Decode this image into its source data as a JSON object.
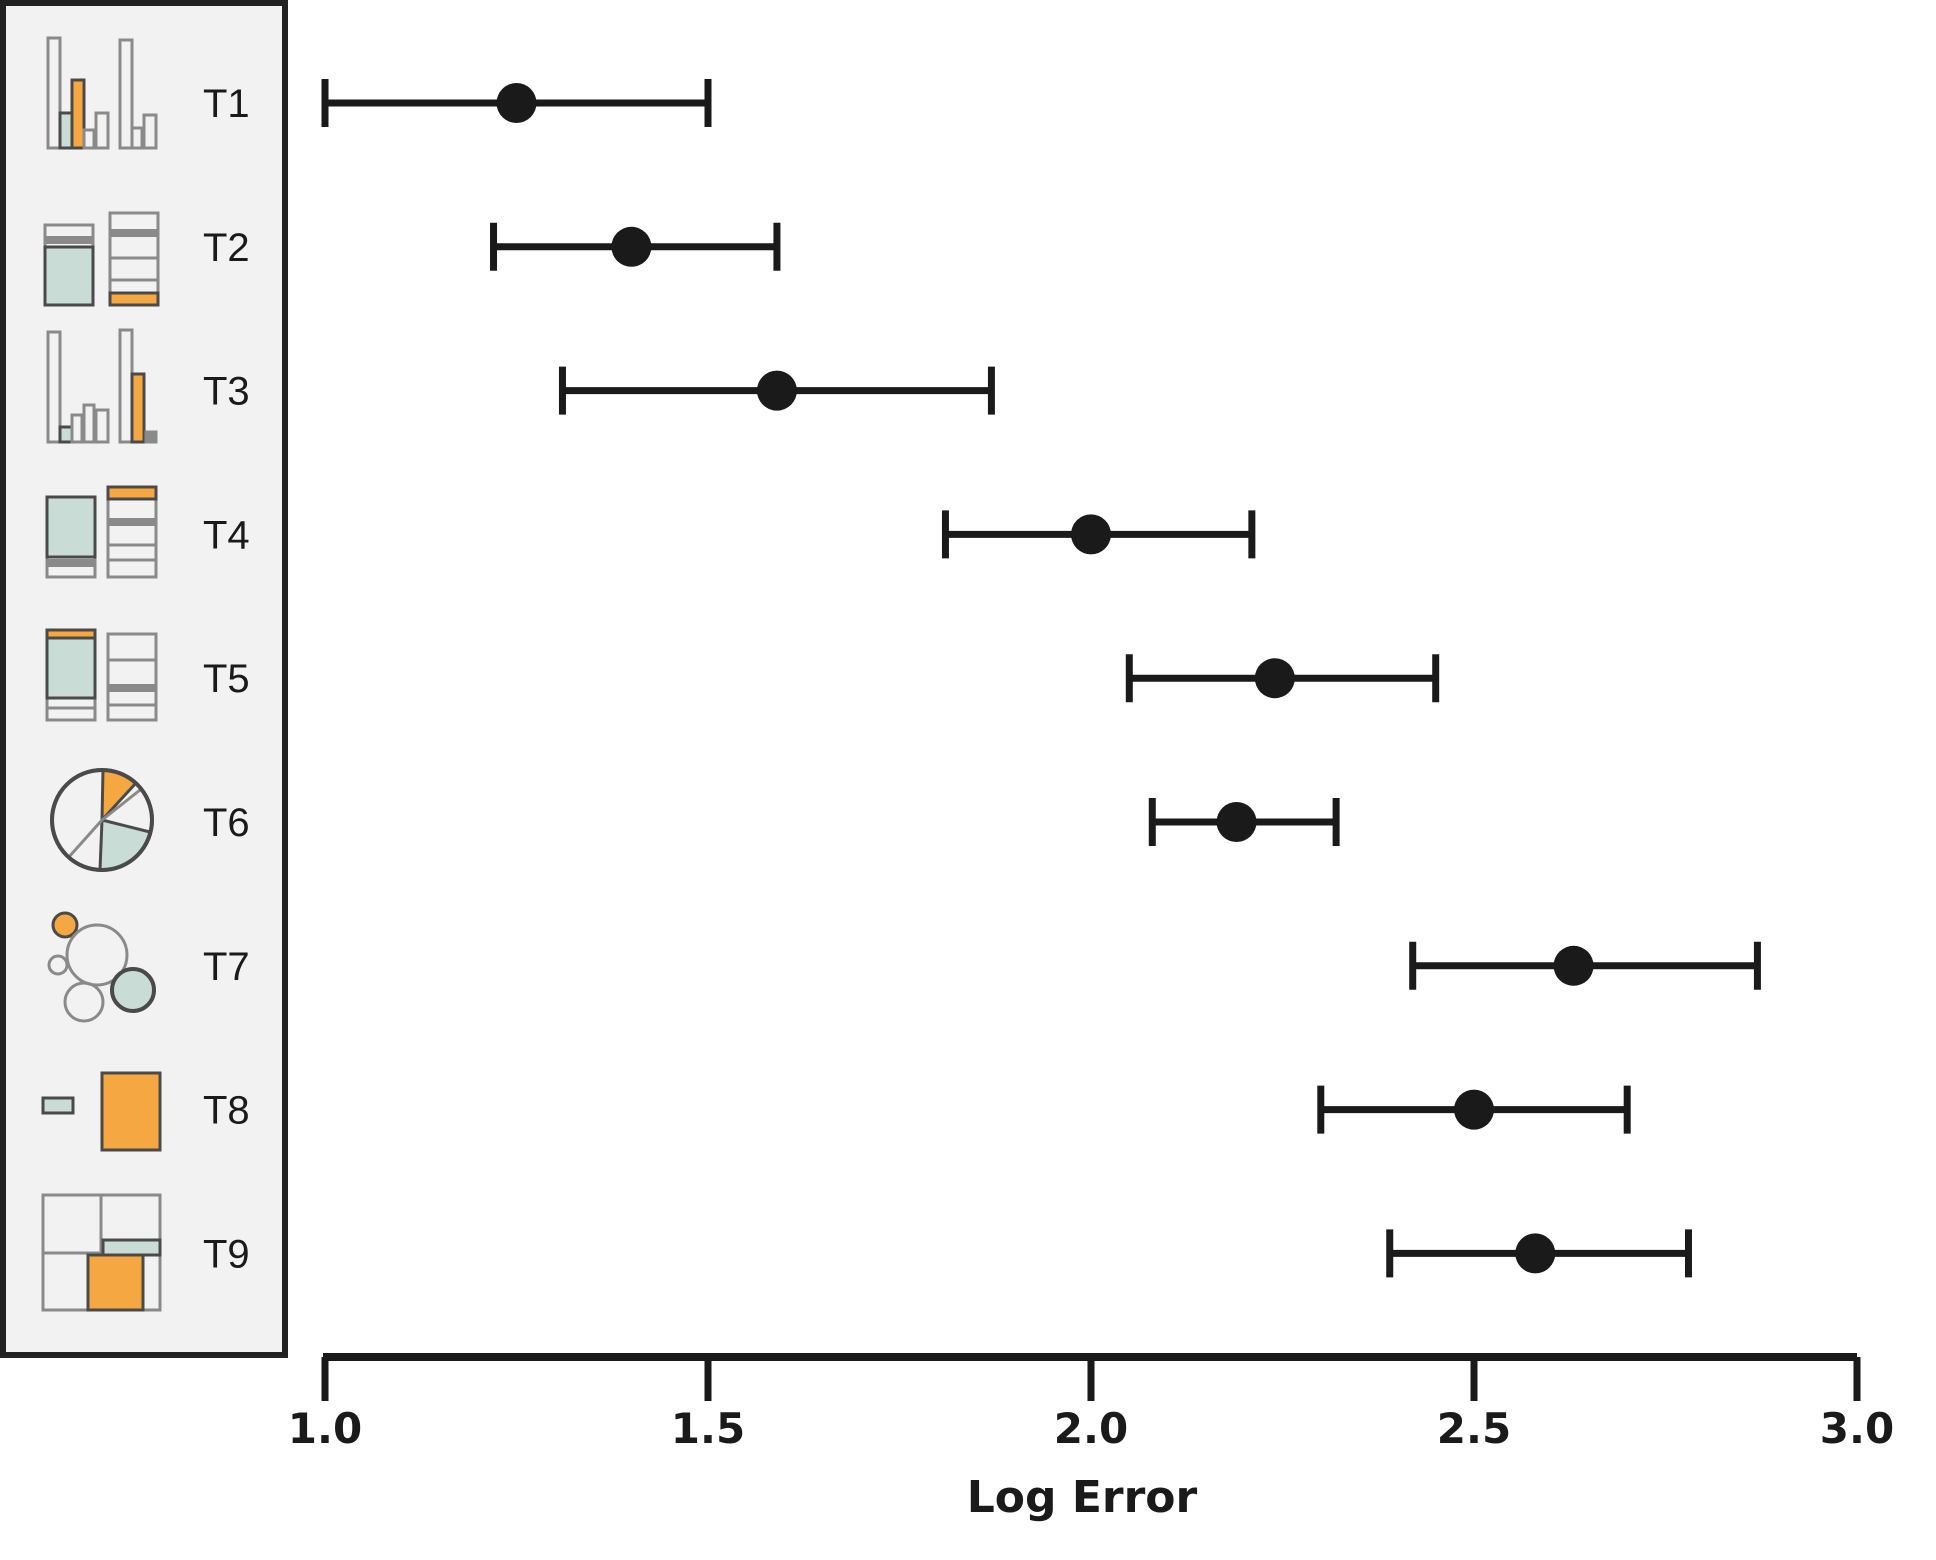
{
  "colors": {
    "mark": "#1a1a1a",
    "panel_bg": "#f2f2f2",
    "panel_border": "#222222",
    "highlight": "#f5a841",
    "secondary_fill": "#c9dcd6",
    "icon_stroke": "#8a8a8a"
  },
  "chart_data": {
    "type": "scatter",
    "xlabel": "Log Error",
    "xlim": [
      1.0,
      3.0
    ],
    "xticks": [
      "1.0",
      "1.5",
      "2.0",
      "2.5",
      "3.0"
    ],
    "rows": [
      {
        "label": "T1",
        "icon": "grouped-bar-icon",
        "mean": 1.25,
        "low": 1.0,
        "high": 1.5
      },
      {
        "label": "T2",
        "icon": "stacked-bar-icon",
        "mean": 1.4,
        "low": 1.22,
        "high": 1.59
      },
      {
        "label": "T3",
        "icon": "bar-pair-icon",
        "mean": 1.59,
        "low": 1.31,
        "high": 1.87
      },
      {
        "label": "T4",
        "icon": "stacked-bar-icon",
        "mean": 2.0,
        "low": 1.81,
        "high": 2.21
      },
      {
        "label": "T5",
        "icon": "stacked-bar-icon",
        "mean": 2.24,
        "low": 2.05,
        "high": 2.45
      },
      {
        "label": "T6",
        "icon": "pie-icon",
        "mean": 2.19,
        "low": 2.08,
        "high": 2.32
      },
      {
        "label": "T7",
        "icon": "bubble-icon",
        "mean": 2.63,
        "low": 2.42,
        "high": 2.87
      },
      {
        "label": "T8",
        "icon": "area-comparison-icon",
        "mean": 2.5,
        "low": 2.3,
        "high": 2.7
      },
      {
        "label": "T9",
        "icon": "treemap-icon",
        "mean": 2.58,
        "low": 2.39,
        "high": 2.78
      }
    ]
  }
}
